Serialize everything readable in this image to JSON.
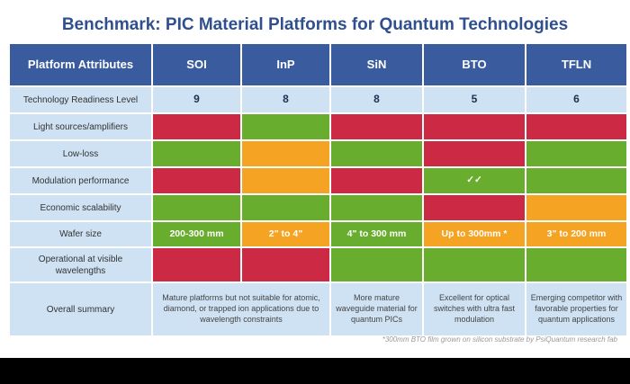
{
  "title": "Benchmark: PIC Material Platforms for Quantum Technologies",
  "colors": {
    "red": "#cc2944",
    "green": "#69ad2f",
    "orange": "#f5a322",
    "header": "#3a5b9e",
    "label_bg": "#cfe2f3"
  },
  "headers": [
    "Platform Attributes",
    "SOI",
    "InP",
    "SiN",
    "BTO",
    "TFLN"
  ],
  "rows": [
    {
      "label": "Technology Readiness Level",
      "cells": [
        {
          "text": "9"
        },
        {
          "text": "8"
        },
        {
          "text": "8"
        },
        {
          "text": "5"
        },
        {
          "text": "6"
        }
      ]
    },
    {
      "label": "Light sources/amplifiers",
      "cells": [
        {
          "status": "red"
        },
        {
          "status": "green"
        },
        {
          "status": "red"
        },
        {
          "status": "red"
        },
        {
          "status": "red"
        }
      ]
    },
    {
      "label": "Low-loss",
      "cells": [
        {
          "status": "green"
        },
        {
          "status": "orange"
        },
        {
          "status": "green"
        },
        {
          "status": "red"
        },
        {
          "status": "green"
        }
      ]
    },
    {
      "label": "Modulation performance",
      "cells": [
        {
          "status": "red"
        },
        {
          "status": "orange"
        },
        {
          "status": "red"
        },
        {
          "status": "green",
          "text": "✓✓"
        },
        {
          "status": "green"
        }
      ]
    },
    {
      "label": "Economic scalability",
      "cells": [
        {
          "status": "green"
        },
        {
          "status": "green"
        },
        {
          "status": "green"
        },
        {
          "status": "red"
        },
        {
          "status": "orange"
        }
      ]
    },
    {
      "label": "Wafer size",
      "cells": [
        {
          "status": "green",
          "text": "200-300 mm"
        },
        {
          "status": "orange",
          "text": "2\" to 4\""
        },
        {
          "status": "green",
          "text": "4\" to 300 mm"
        },
        {
          "status": "orange",
          "text": "Up to 300mm *"
        },
        {
          "status": "orange",
          "text": "3\" to 200 mm"
        }
      ]
    },
    {
      "label": "Operational at visible wavelengths",
      "cells": [
        {
          "status": "red"
        },
        {
          "status": "red"
        },
        {
          "status": "green"
        },
        {
          "status": "green"
        },
        {
          "status": "green"
        }
      ]
    }
  ],
  "summary": {
    "label": "Overall summary",
    "soi_inp": "Mature platforms but not suitable for atomic, diamond, or trapped ion applications due to wavelength constraints",
    "sin": "More mature waveguide material for quantum PICs",
    "bto": "Excellent for optical switches with ultra fast modulation",
    "tfln": "Emerging competitor with favorable properties for quantum applications"
  },
  "footnote": "*300mm BTO film grown on silicon substrate by PsiQuantum research fab"
}
